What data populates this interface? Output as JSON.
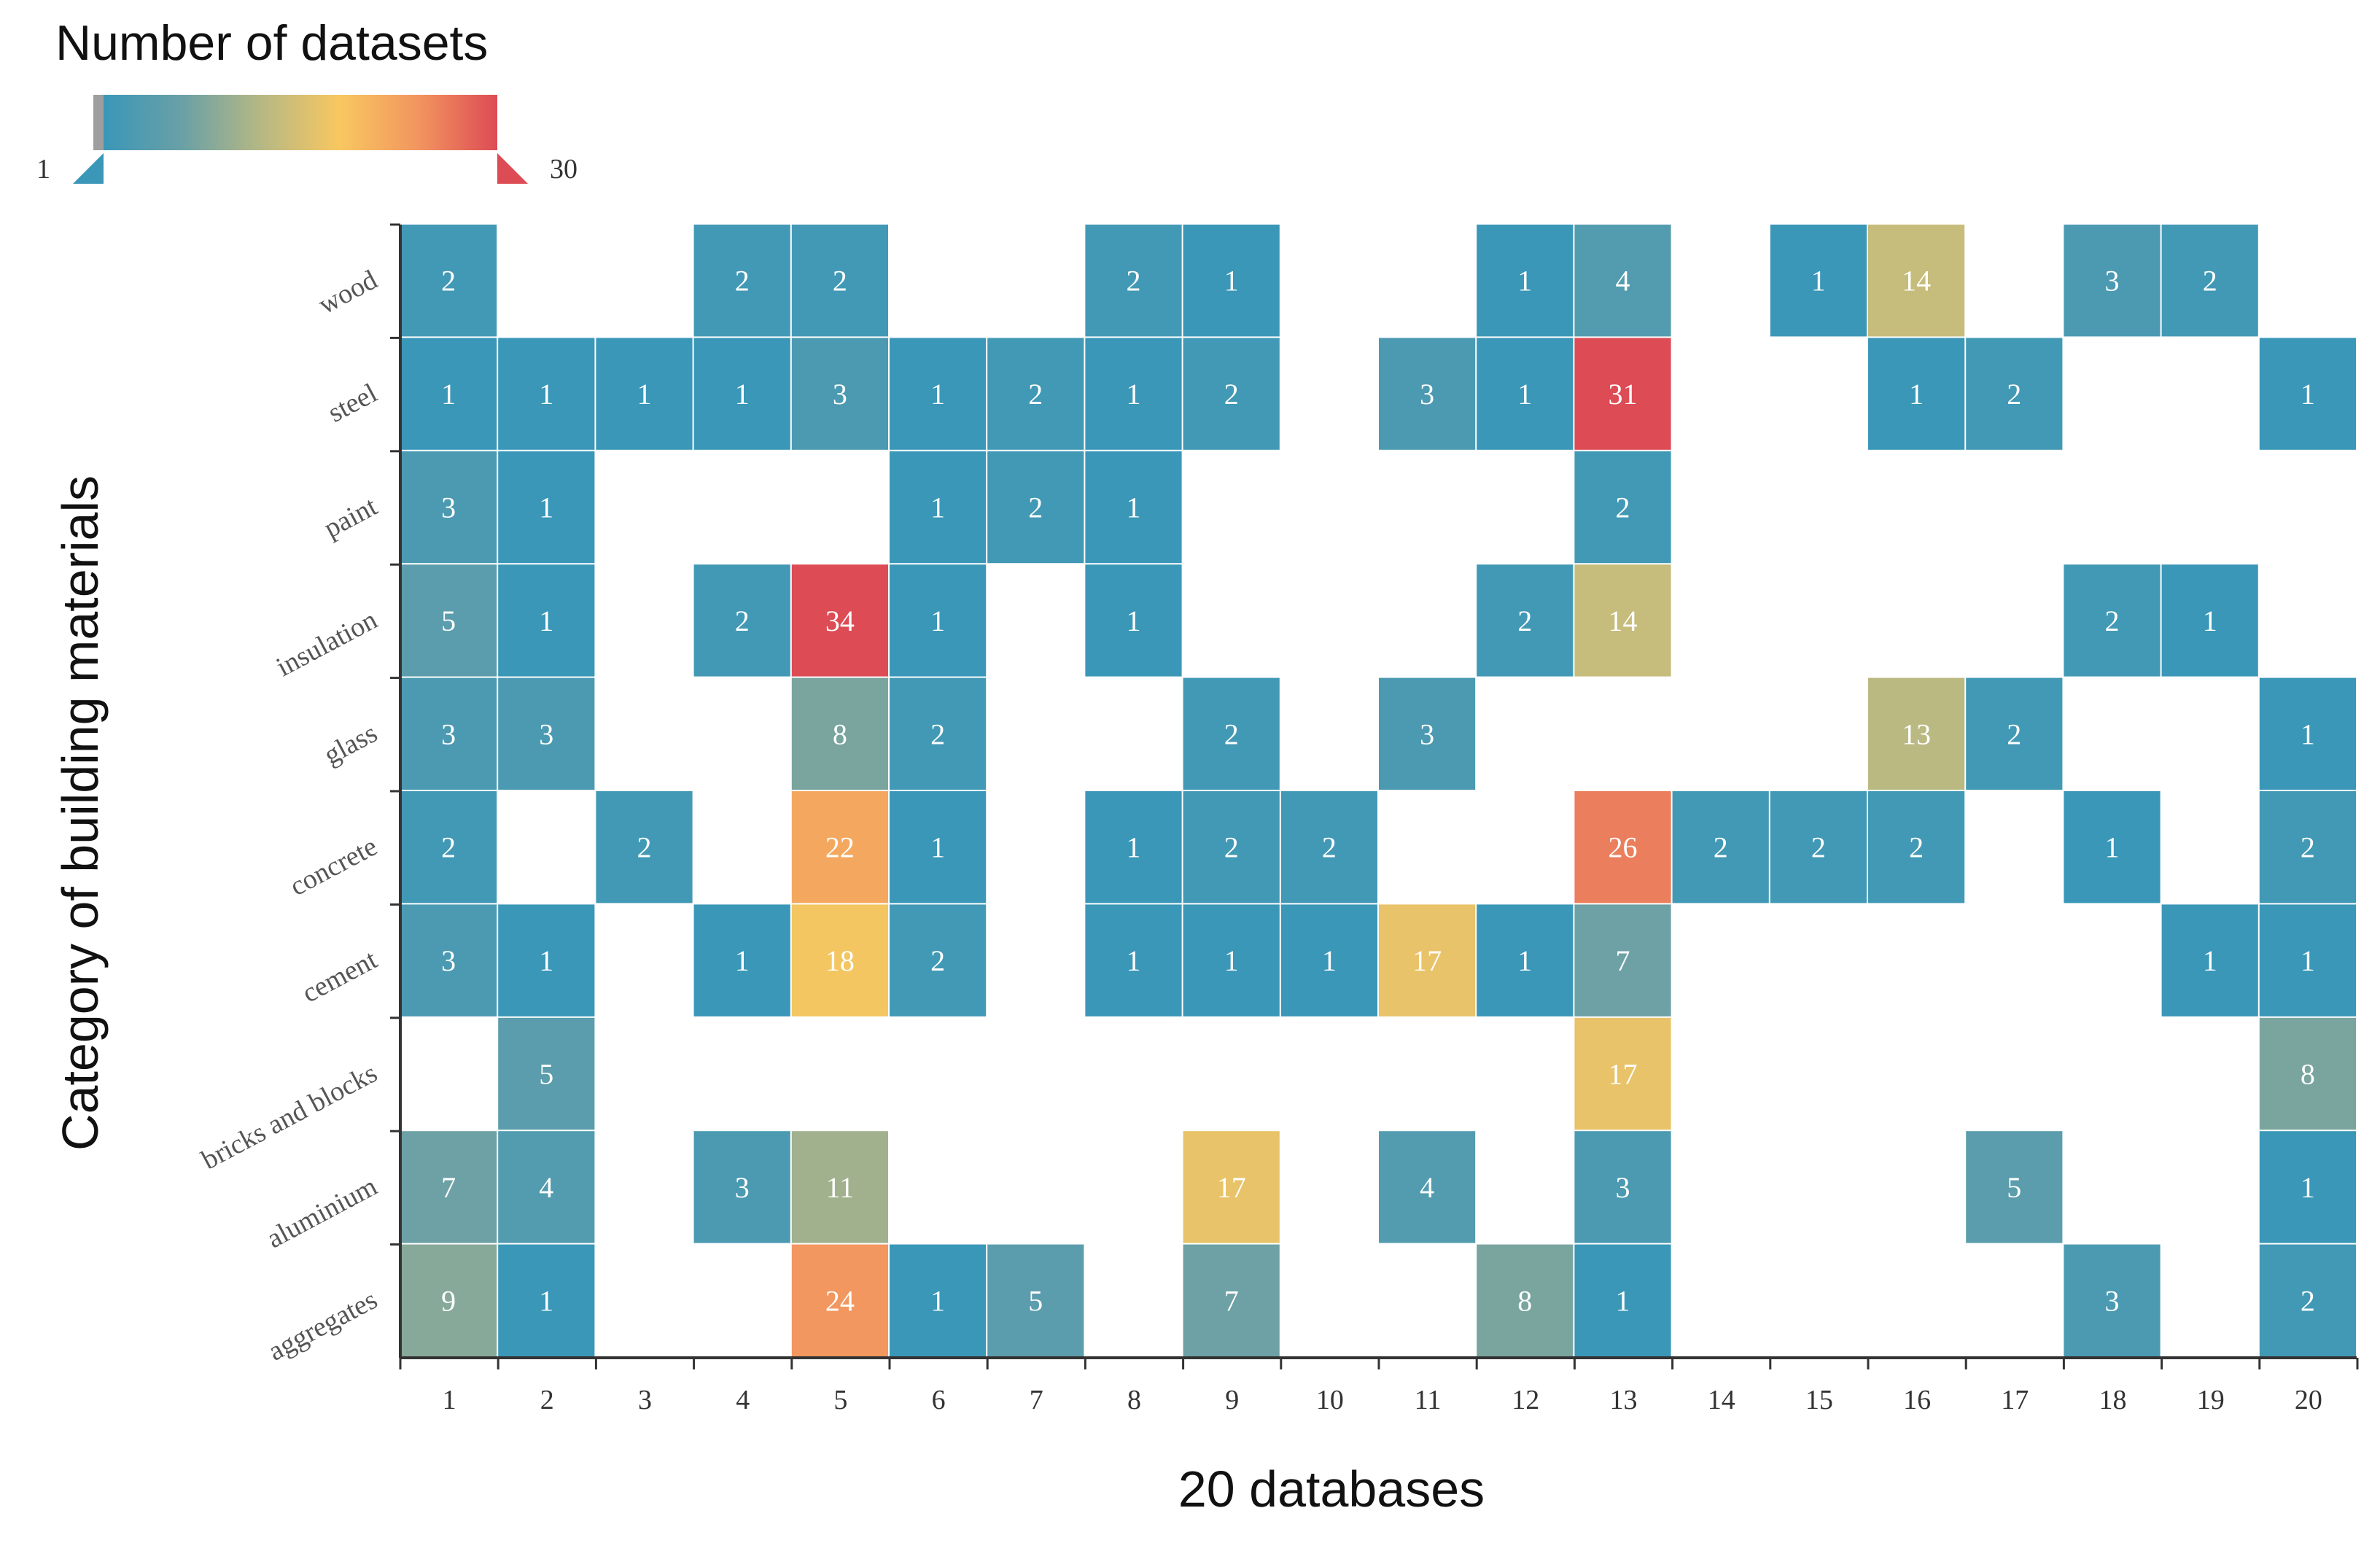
{
  "chart_data": {
    "type": "heatmap",
    "xlabel": "20 databases",
    "ylabel": "Category of building materials",
    "legend": {
      "title": "Number of datasets",
      "min": 1,
      "max": 30,
      "min_label": "1",
      "max_label": "30",
      "colors": [
        "#3a97b8",
        "#6aa0a6",
        "#b6b884",
        "#f8c760",
        "#f2955f",
        "#dd4b55"
      ]
    },
    "x_categories": [
      "1",
      "2",
      "3",
      "4",
      "5",
      "6",
      "7",
      "8",
      "9",
      "10",
      "11",
      "12",
      "13",
      "14",
      "15",
      "16",
      "17",
      "18",
      "19",
      "20"
    ],
    "y_categories": [
      "wood",
      "steel",
      "paint",
      "insulation",
      "glass",
      "concrete",
      "cement",
      "bricks and blocks",
      "aluminium",
      "aggregates"
    ],
    "values": [
      [
        2,
        null,
        null,
        2,
        2,
        null,
        null,
        2,
        1,
        null,
        null,
        1,
        4,
        null,
        1,
        14,
        null,
        3,
        2,
        null
      ],
      [
        1,
        1,
        1,
        1,
        3,
        1,
        2,
        1,
        2,
        null,
        3,
        1,
        31,
        null,
        null,
        1,
        2,
        null,
        null,
        1
      ],
      [
        3,
        1,
        null,
        null,
        null,
        1,
        2,
        1,
        null,
        null,
        null,
        null,
        2,
        null,
        null,
        null,
        null,
        null,
        null,
        null
      ],
      [
        5,
        1,
        null,
        2,
        34,
        1,
        null,
        1,
        null,
        null,
        null,
        2,
        14,
        null,
        null,
        null,
        null,
        2,
        1,
        null
      ],
      [
        3,
        3,
        null,
        null,
        8,
        2,
        null,
        null,
        2,
        null,
        3,
        null,
        null,
        null,
        null,
        13,
        2,
        null,
        null,
        1
      ],
      [
        2,
        null,
        2,
        null,
        22,
        1,
        null,
        1,
        2,
        2,
        null,
        null,
        26,
        2,
        2,
        2,
        null,
        1,
        null,
        2
      ],
      [
        3,
        1,
        null,
        1,
        18,
        2,
        null,
        1,
        1,
        1,
        17,
        1,
        7,
        null,
        null,
        null,
        null,
        null,
        1,
        1
      ],
      [
        null,
        5,
        null,
        null,
        null,
        null,
        null,
        null,
        null,
        null,
        null,
        null,
        17,
        null,
        null,
        null,
        null,
        null,
        null,
        8
      ],
      [
        7,
        4,
        null,
        3,
        11,
        null,
        null,
        null,
        17,
        null,
        4,
        null,
        3,
        null,
        null,
        null,
        5,
        null,
        null,
        1
      ],
      [
        9,
        1,
        null,
        null,
        24,
        1,
        5,
        null,
        7,
        null,
        null,
        8,
        1,
        null,
        null,
        null,
        null,
        3,
        null,
        2
      ]
    ]
  }
}
